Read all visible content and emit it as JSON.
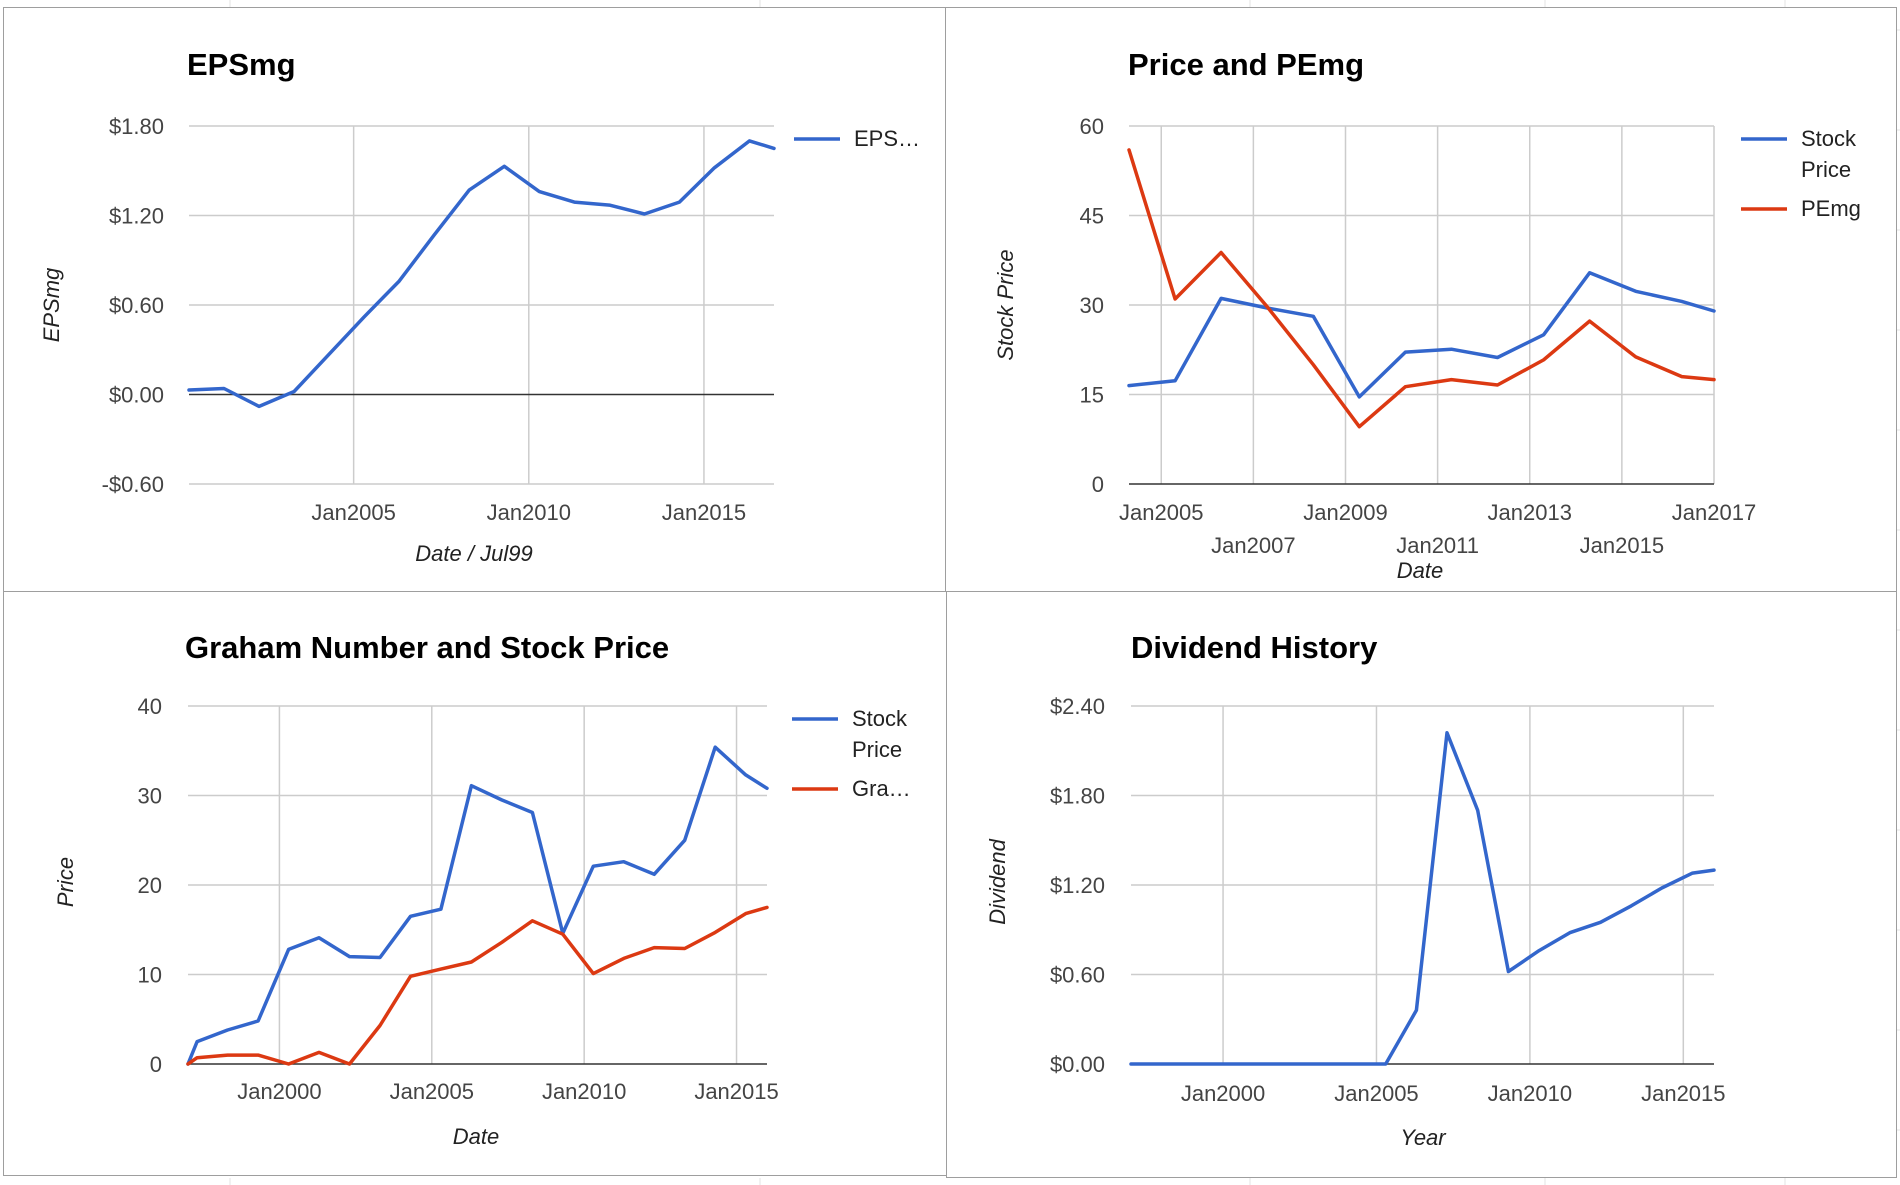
{
  "chart_data": [
    {
      "type": "line",
      "title": "EPSmg",
      "xlabel": "Date / Jul99",
      "ylabel": "EPSmg",
      "x_tick_labels": [
        "Jan2005",
        "Jan2010",
        "Jan2015"
      ],
      "y_tick_labels": [
        "$1.80",
        "$1.20",
        "$0.60",
        "$0.00",
        "-$0.60"
      ],
      "ylim": [
        -0.6,
        1.8
      ],
      "y_ticks": [
        1.8,
        1.2,
        0.6,
        0.0,
        -0.6
      ],
      "xlim": [
        2000.3,
        2017.0
      ],
      "x_ticks": [
        2005,
        2010,
        2015
      ],
      "grid": true,
      "legend_position": "right",
      "legend": [
        "EPS…"
      ],
      "series": [
        {
          "name": "EPS…",
          "color": "#3366cc",
          "x": [
            2000.3,
            2001.3,
            2002.3,
            2003.3,
            2004.3,
            2005.3,
            2006.3,
            2007.3,
            2008.3,
            2009.3,
            2010.3,
            2011.3,
            2012.3,
            2013.3,
            2014.3,
            2015.3,
            2016.3,
            2017.0
          ],
          "y": [
            0.03,
            0.04,
            -0.08,
            0.02,
            0.27,
            0.52,
            0.76,
            1.07,
            1.37,
            1.53,
            1.36,
            1.29,
            1.27,
            1.21,
            1.29,
            1.52,
            1.7,
            1.65
          ]
        }
      ]
    },
    {
      "type": "line",
      "title": "Price and PEmg",
      "xlabel": "Date",
      "ylabel": "Stock Price",
      "x_tick_labels": [
        "Jan2005",
        "Jan2007",
        "Jan2009",
        "Jan2011",
        "Jan2013",
        "Jan2015",
        "Jan2017"
      ],
      "y_tick_labels": [
        "60",
        "45",
        "30",
        "15",
        "0"
      ],
      "ylim": [
        0,
        60
      ],
      "y_ticks": [
        60,
        45,
        30,
        15,
        0
      ],
      "xlim": [
        2004.3,
        2017.0
      ],
      "x_ticks": [
        2005,
        2007,
        2009,
        2011,
        2013,
        2015,
        2017
      ],
      "grid": true,
      "legend_position": "right",
      "legend": [
        "Stock Price",
        "PEmg"
      ],
      "series": [
        {
          "name": "Stock Price",
          "color": "#3366cc",
          "x": [
            2004.3,
            2005.3,
            2006.3,
            2007.3,
            2008.3,
            2009.3,
            2010.3,
            2011.3,
            2012.3,
            2013.3,
            2014.3,
            2015.3,
            2016.3,
            2017.0
          ],
          "y": [
            16.5,
            17.3,
            31.1,
            29.5,
            28.1,
            14.6,
            22.1,
            22.6,
            21.2,
            25.0,
            35.4,
            32.3,
            30.6,
            29.0
          ]
        },
        {
          "name": "PEmg",
          "color": "#dc3912",
          "x": [
            2004.3,
            2005.3,
            2006.3,
            2007.3,
            2008.3,
            2009.3,
            2010.3,
            2011.3,
            2012.3,
            2013.3,
            2014.3,
            2015.3,
            2016.3,
            2017.0
          ],
          "y": [
            56.0,
            31.0,
            38.8,
            29.7,
            20.0,
            9.6,
            16.3,
            17.5,
            16.6,
            20.8,
            27.3,
            21.3,
            18.0,
            17.5
          ]
        }
      ]
    },
    {
      "type": "line",
      "title": "Graham Number and Stock Price",
      "xlabel": "Date",
      "ylabel": "Price",
      "x_tick_labels": [
        "Jan2000",
        "Jan2005",
        "Jan2010",
        "Jan2015"
      ],
      "y_tick_labels": [
        "40",
        "30",
        "20",
        "10",
        "0"
      ],
      "ylim": [
        0,
        40
      ],
      "y_ticks": [
        40,
        30,
        20,
        10,
        0
      ],
      "xlim": [
        1997.0,
        2016.0
      ],
      "x_ticks": [
        2000,
        2005,
        2010,
        2015
      ],
      "grid": true,
      "legend_position": "right",
      "legend": [
        "Stock Price",
        "Gra…"
      ],
      "series": [
        {
          "name": "Stock Price",
          "color": "#3366cc",
          "x": [
            1997.0,
            1997.3,
            1998.3,
            1999.3,
            2000.3,
            2001.3,
            2002.3,
            2003.3,
            2004.3,
            2005.3,
            2006.3,
            2007.3,
            2008.3,
            2009.3,
            2010.3,
            2011.3,
            2012.3,
            2013.3,
            2014.3,
            2015.3,
            2016.0
          ],
          "y": [
            0,
            2.5,
            3.8,
            4.8,
            12.8,
            14.1,
            12.0,
            11.9,
            16.5,
            17.3,
            31.1,
            29.5,
            28.1,
            14.6,
            22.1,
            22.6,
            21.2,
            25.0,
            35.4,
            32.3,
            30.8
          ]
        },
        {
          "name": "Gra…",
          "color": "#dc3912",
          "x": [
            1997.0,
            1997.3,
            1998.3,
            1999.3,
            2000.3,
            2001.3,
            2002.3,
            2003.3,
            2004.3,
            2005.3,
            2006.3,
            2007.3,
            2008.3,
            2009.3,
            2010.3,
            2011.3,
            2012.3,
            2013.3,
            2014.3,
            2015.3,
            2016.0
          ],
          "y": [
            0,
            0.7,
            1.0,
            1.0,
            0.0,
            1.3,
            0.0,
            4.3,
            9.8,
            10.6,
            11.4,
            13.6,
            16.0,
            14.5,
            10.1,
            11.8,
            13.0,
            12.9,
            14.7,
            16.8,
            17.5
          ]
        }
      ]
    },
    {
      "type": "line",
      "title": "Dividend History",
      "xlabel": "Year",
      "ylabel": "Dividend",
      "x_tick_labels": [
        "Jan2000",
        "Jan2005",
        "Jan2010",
        "Jan2015"
      ],
      "y_tick_labels": [
        "$2.40",
        "$1.80",
        "$1.20",
        "$0.60",
        "$0.00"
      ],
      "ylim": [
        0,
        2.4
      ],
      "y_ticks": [
        2.4,
        1.8,
        1.2,
        0.6,
        0.0
      ],
      "xlim": [
        1997.0,
        2016.0
      ],
      "x_ticks": [
        2000,
        2005,
        2010,
        2015
      ],
      "grid": true,
      "legend_position": "none",
      "legend": [],
      "series": [
        {
          "name": "",
          "color": "#3366cc",
          "x": [
            1997.0,
            1998.0,
            1999.0,
            2000.0,
            2001.0,
            2002.0,
            2003.0,
            2004.0,
            2005.3,
            2006.3,
            2007.3,
            2008.3,
            2009.3,
            2010.3,
            2011.3,
            2012.3,
            2013.3,
            2014.3,
            2015.3,
            2016.0
          ],
          "y": [
            0,
            0,
            0,
            0,
            0,
            0,
            0,
            0,
            0,
            0.36,
            2.22,
            1.7,
            0.62,
            0.76,
            0.88,
            0.95,
            1.06,
            1.18,
            1.28,
            1.3
          ]
        }
      ]
    }
  ]
}
